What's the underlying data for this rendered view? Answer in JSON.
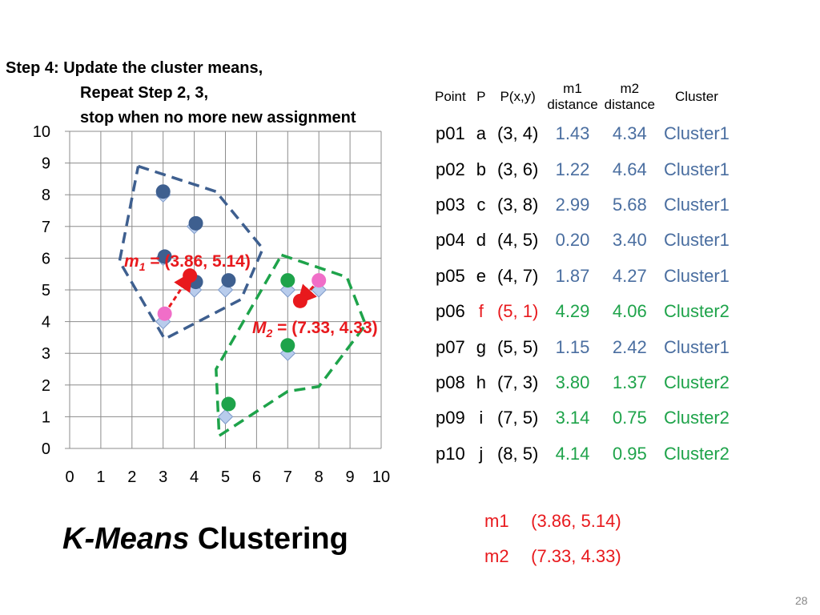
{
  "heading": {
    "line1": "Step 4: Update the cluster means,",
    "line2": "Repeat Step 2, 3,",
    "line3": "stop when no more new assignment"
  },
  "title": {
    "italic": "K-Means",
    "rest": " Clustering"
  },
  "page_number": "28",
  "table": {
    "headers": [
      "Point",
      "P",
      "P(x,y)",
      "m1\ndistance",
      "m2\ndistance",
      "Cluster"
    ],
    "rows": [
      {
        "id": "p01",
        "p": "a",
        "xy": "(3, 4)",
        "d1": "1.43",
        "d2": "4.34",
        "cluster": "Cluster1",
        "color": "blue"
      },
      {
        "id": "p02",
        "p": "b",
        "xy": "(3, 6)",
        "d1": "1.22",
        "d2": "4.64",
        "cluster": "Cluster1",
        "color": "blue"
      },
      {
        "id": "p03",
        "p": "c",
        "xy": "(3, 8)",
        "d1": "2.99",
        "d2": "5.68",
        "cluster": "Cluster1",
        "color": "blue"
      },
      {
        "id": "p04",
        "p": "d",
        "xy": "(4, 5)",
        "d1": "0.20",
        "d2": "3.40",
        "cluster": "Cluster1",
        "color": "blue"
      },
      {
        "id": "p05",
        "p": "e",
        "xy": "(4, 7)",
        "d1": "1.87",
        "d2": "4.27",
        "cluster": "Cluster1",
        "color": "blue"
      },
      {
        "id": "p06",
        "p": "f",
        "xy": "(5, 1)",
        "d1": "4.29",
        "d2": "4.06",
        "cluster": "Cluster2",
        "color": "green",
        "red_prefix": true
      },
      {
        "id": "p07",
        "p": "g",
        "xy": "(5, 5)",
        "d1": "1.15",
        "d2": "2.42",
        "cluster": "Cluster1",
        "color": "blue"
      },
      {
        "id": "p08",
        "p": "h",
        "xy": "(7, 3)",
        "d1": "3.80",
        "d2": "1.37",
        "cluster": "Cluster2",
        "color": "green"
      },
      {
        "id": "p09",
        "p": "i",
        "xy": "(7, 5)",
        "d1": "3.14",
        "d2": "0.75",
        "cluster": "Cluster2",
        "color": "green"
      },
      {
        "id": "p10",
        "p": "j",
        "xy": "(8, 5)",
        "d1": "4.14",
        "d2": "0.95",
        "cluster": "Cluster2",
        "color": "green"
      }
    ]
  },
  "means": [
    {
      "label": "m1",
      "value": "(3.86, 5.14)"
    },
    {
      "label": "m2",
      "value": "(7.33, 4.33)"
    }
  ],
  "colors": {
    "cluster1": "#3e5f8f",
    "cluster2": "#1ea34a",
    "mean": "#e8191d",
    "old_mean": "#f06ec8",
    "diamond_fill": "#b8ccec",
    "blue_text": "#4a6ea0",
    "green_text": "#1ea34a",
    "red_text": "#e8191d"
  },
  "chart_data": {
    "type": "scatter",
    "xlim": [
      0,
      10
    ],
    "ylim": [
      0,
      10
    ],
    "x_ticks": [
      "0",
      "1",
      "2",
      "3",
      "4",
      "5",
      "6",
      "7",
      "8",
      "9",
      "10"
    ],
    "y_ticks": [
      "0",
      "1",
      "2",
      "3",
      "4",
      "5",
      "6",
      "7",
      "8",
      "9",
      "10"
    ],
    "grid": true,
    "data_points": [
      [
        3,
        4
      ],
      [
        3,
        6
      ],
      [
        3,
        8
      ],
      [
        4,
        5
      ],
      [
        4,
        7
      ],
      [
        5,
        1
      ],
      [
        5,
        5
      ],
      [
        7,
        3
      ],
      [
        7,
        5
      ],
      [
        8,
        5
      ]
    ],
    "cluster1_points": [
      [
        3,
        8.1
      ],
      [
        4.05,
        7.1
      ],
      [
        3.05,
        6.05
      ],
      [
        4.05,
        5.25
      ],
      [
        5.1,
        5.3
      ]
    ],
    "cluster2_points": [
      [
        7,
        5.3
      ],
      [
        7,
        3.25
      ],
      [
        5.1,
        1.4
      ]
    ],
    "old_means": [
      [
        3.05,
        4.25
      ],
      [
        8,
        5.3
      ]
    ],
    "new_means": [
      {
        "x": 3.86,
        "y": 5.45,
        "label_main": "m",
        "label_sub": "1",
        "label_value": " = (3.86, 5.14)",
        "italic": true
      },
      {
        "x": 7.4,
        "y": 4.65,
        "label_main": "M",
        "label_sub": "2",
        "label_value": " = (7.33, 4.33)",
        "italic": true
      }
    ],
    "cluster1_boundary": [
      [
        2.2,
        8.9
      ],
      [
        4.7,
        8.1
      ],
      [
        6.2,
        6.3
      ],
      [
        5.5,
        4.7
      ],
      [
        3.05,
        3.45
      ],
      [
        1.6,
        5.9
      ],
      [
        2.2,
        8.9
      ]
    ],
    "cluster2_boundary": [
      [
        6.8,
        6.1
      ],
      [
        8.9,
        5.4
      ],
      [
        9.5,
        3.9
      ],
      [
        8,
        1.95
      ],
      [
        7,
        1.8
      ],
      [
        4.8,
        0.4
      ],
      [
        4.7,
        2.5
      ],
      [
        6.8,
        6.1
      ]
    ]
  }
}
